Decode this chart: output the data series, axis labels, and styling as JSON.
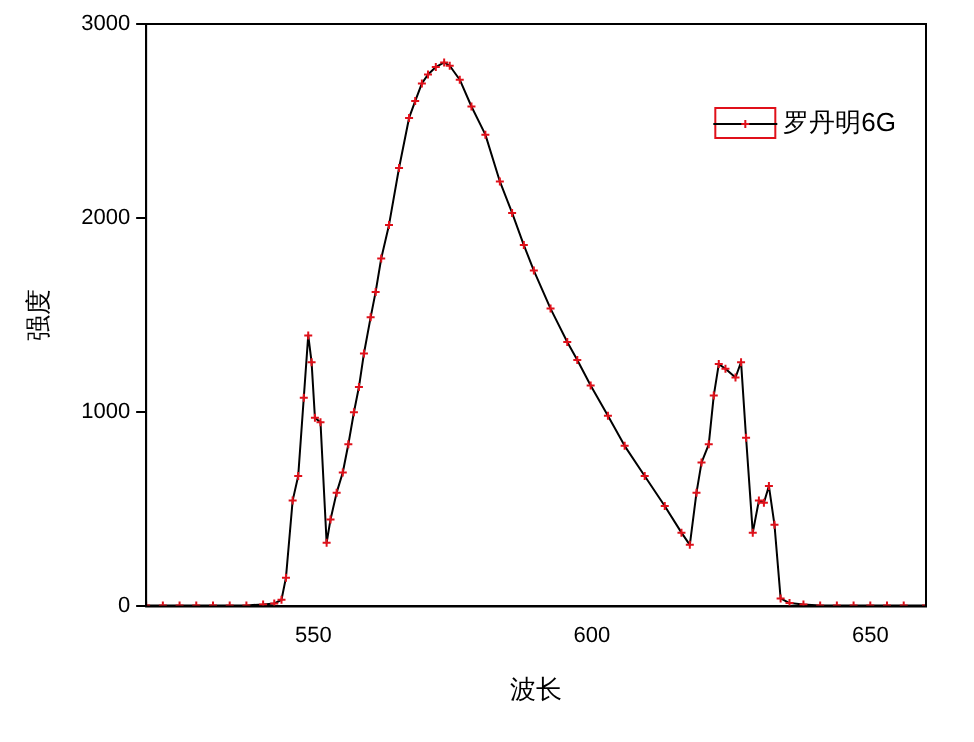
{
  "chart_data": {
    "type": "line",
    "xlabel": "波长",
    "ylabel": "强度",
    "xlim": [
      520,
      660
    ],
    "ylim": [
      0,
      3000
    ],
    "xticks": [
      550,
      600,
      650
    ],
    "yticks": [
      0,
      1000,
      2000,
      3000
    ],
    "grid": false,
    "legend": "top right",
    "marker": "cross",
    "line_style": "solid",
    "series": [
      {
        "name": "罗丹明6G",
        "color": "#e0101a",
        "x": [
          520,
          523,
          526,
          529,
          532,
          535,
          538,
          541,
          543,
          544.3,
          545.1,
          546.3,
          547.3,
          548.3,
          549.1,
          549.7,
          550.3,
          551.3,
          552.4,
          553.1,
          554.2,
          555.3,
          556.3,
          557.3,
          558.2,
          559.1,
          560.3,
          561.2,
          562.2,
          563.6,
          565.4,
          567.2,
          568.3,
          569.5,
          570.6,
          572.0,
          573.5,
          574.5,
          576.3,
          578.4,
          580.9,
          583.5,
          585.7,
          587.8,
          589.6,
          592.6,
          595.6,
          597.4,
          599.8,
          602.9,
          605.9,
          609.5,
          613.1,
          616.1,
          617.6,
          618.8,
          619.7,
          621.0,
          621.9,
          622.8,
          624.0,
          625.8,
          626.8,
          627.7,
          628.9,
          630.0,
          630.9,
          631.8,
          632.8,
          633.9,
          635.5,
          638,
          641,
          644,
          647,
          650,
          653,
          656,
          660
        ],
        "values": [
          5,
          5,
          5,
          5,
          5,
          5,
          5,
          10,
          15,
          34,
          148,
          545,
          672,
          1075,
          1396,
          1258,
          972,
          948,
          328,
          448,
          586,
          690,
          835,
          1000,
          1130,
          1303,
          1489,
          1620,
          1792,
          1965,
          2258,
          2516,
          2603,
          2694,
          2740,
          2778,
          2802,
          2785,
          2713,
          2575,
          2430,
          2189,
          2027,
          1861,
          1730,
          1534,
          1362,
          1269,
          1138,
          982,
          827,
          672,
          517,
          380,
          317,
          586,
          741,
          835,
          1086,
          1248,
          1224,
          1179,
          1258,
          869,
          380,
          545,
          534,
          620,
          420,
          41,
          17,
          10,
          5,
          5,
          5,
          5,
          5,
          5,
          5
        ]
      }
    ]
  }
}
